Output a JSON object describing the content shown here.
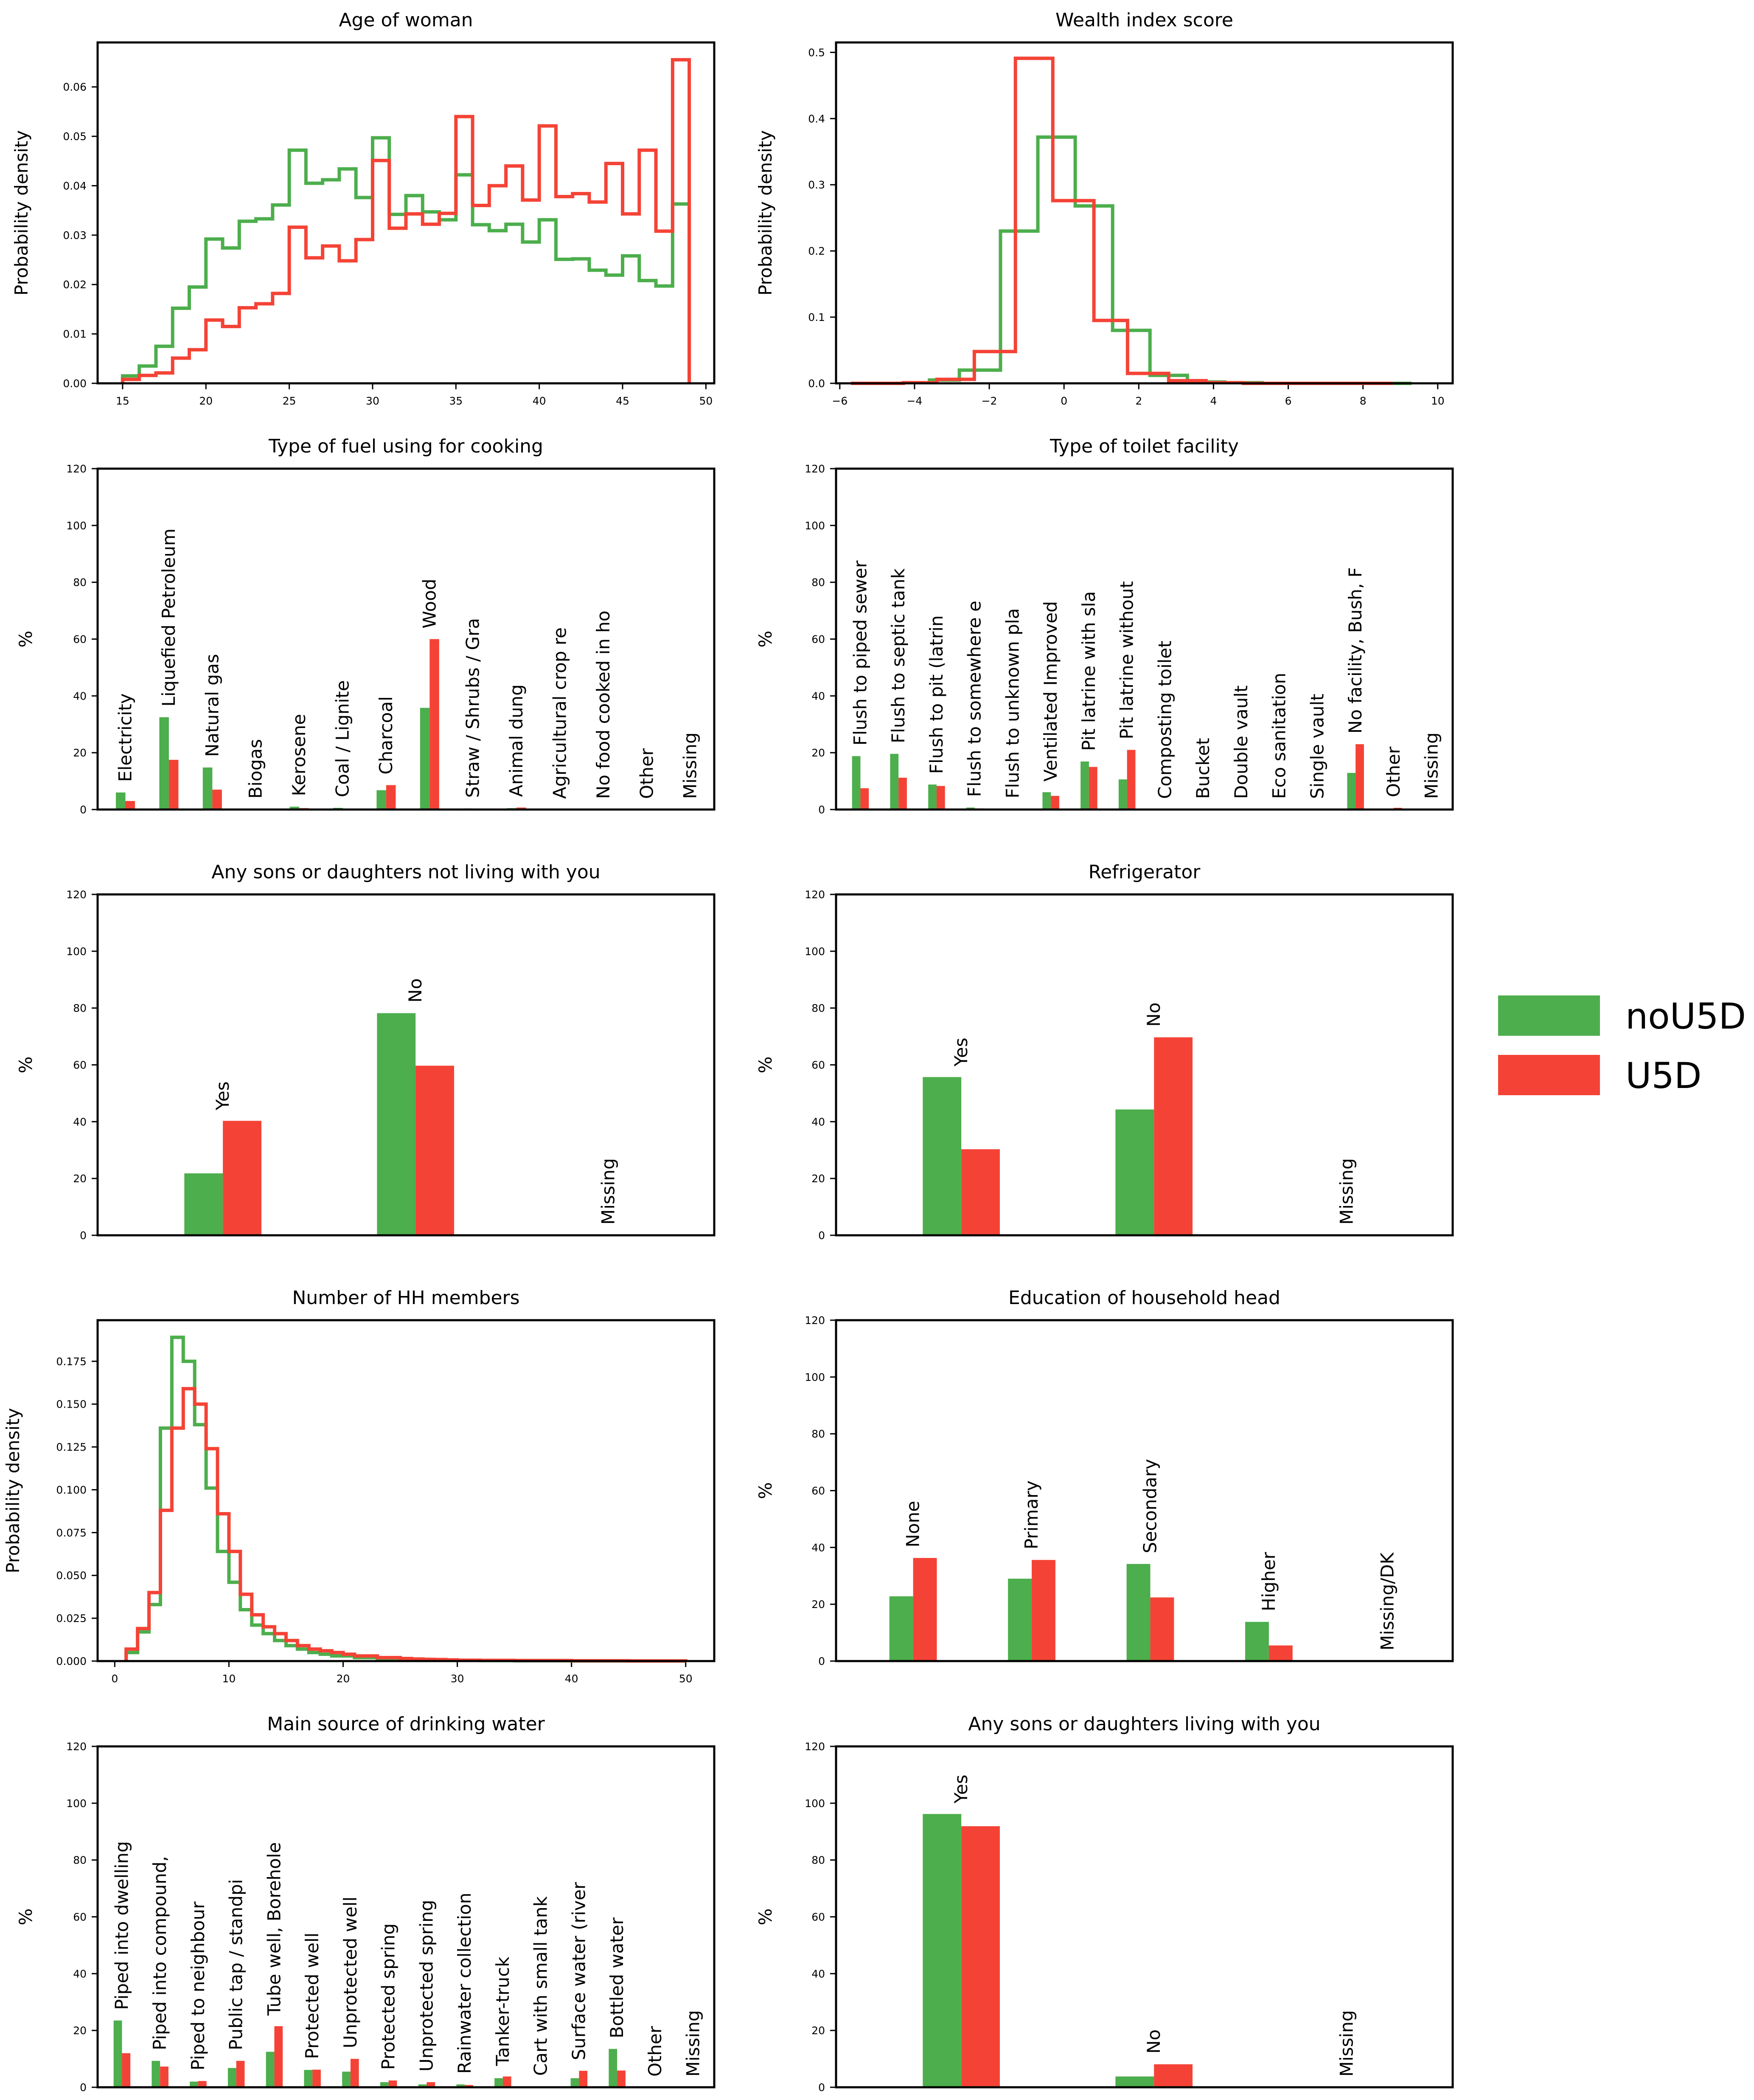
{
  "colors": {
    "noU5D": "#4cae4c",
    "U5D": "#f44336"
  },
  "legend": {
    "entries": [
      {
        "key": "noU5D",
        "label": "noU5D"
      },
      {
        "key": "U5D",
        "label": "U5D"
      }
    ]
  },
  "chart_data": [
    {
      "id": "age",
      "type": "step-histogram",
      "title": "Age of woman",
      "ylabel": "Probability density",
      "xlim": [
        13.5,
        50.5
      ],
      "ylim": [
        0,
        0.069
      ],
      "xticks": [
        15,
        20,
        25,
        30,
        35,
        40,
        45,
        50
      ],
      "yticks": [
        0.0,
        0.01,
        0.02,
        0.03,
        0.04,
        0.05,
        0.06
      ],
      "ytick_labels": [
        "0.00",
        "0.01",
        "0.02",
        "0.03",
        "0.04",
        "0.05",
        "0.06"
      ],
      "edges": [
        15,
        16,
        17,
        18,
        19,
        20,
        21,
        22,
        23,
        24,
        25,
        26,
        27,
        28,
        29,
        30,
        31,
        32,
        33,
        34,
        35,
        36,
        37,
        38,
        39,
        40,
        41,
        42,
        43,
        44,
        45,
        46,
        47,
        48,
        49
      ],
      "series": [
        {
          "name": "noU5D",
          "values": [
            0.0015,
            0.0035,
            0.0075,
            0.0152,
            0.0195,
            0.0292,
            0.0274,
            0.0328,
            0.0333,
            0.0361,
            0.0472,
            0.0405,
            0.0412,
            0.0434,
            0.0376,
            0.0497,
            0.0342,
            0.038,
            0.0347,
            0.0331,
            0.0422,
            0.0321,
            0.0309,
            0.0322,
            0.0286,
            0.0331,
            0.0251,
            0.0252,
            0.0229,
            0.0219,
            0.0258,
            0.0208,
            0.0197,
            0.0363
          ]
        },
        {
          "name": "U5D",
          "values": [
            0.0008,
            0.0016,
            0.0021,
            0.0051,
            0.0068,
            0.0128,
            0.0115,
            0.0153,
            0.0161,
            0.0182,
            0.0316,
            0.0254,
            0.0278,
            0.0248,
            0.0291,
            0.0451,
            0.0314,
            0.0343,
            0.0322,
            0.0344,
            0.054,
            0.036,
            0.04,
            0.044,
            0.0371,
            0.0521,
            0.0378,
            0.0384,
            0.0367,
            0.0445,
            0.0343,
            0.0472,
            0.0308,
            0.0655
          ]
        }
      ]
    },
    {
      "id": "wealth",
      "type": "step-histogram",
      "title": "Wealth index score",
      "ylabel": "Probability density",
      "xlim": [
        -6.1,
        10.4
      ],
      "ylim": [
        0,
        0.515
      ],
      "xticks": [
        -6,
        -4,
        -2,
        0,
        2,
        4,
        6,
        8,
        10
      ],
      "xtick_labels": [
        "−6",
        "−4",
        "−2",
        "0",
        "2",
        "4",
        "6",
        "8",
        "10"
      ],
      "yticks": [
        0.0,
        0.1,
        0.2,
        0.3,
        0.4,
        0.5
      ],
      "ytick_labels": [
        "0.0",
        "0.1",
        "0.2",
        "0.3",
        "0.4",
        "0.5"
      ],
      "edges": [
        -5.7,
        -4.7,
        -3.7,
        -2.7,
        -1.7,
        -0.7,
        0.3,
        1.3,
        2.3,
        3.3,
        4.3,
        5.3,
        6.3,
        7.3,
        8.3,
        9.3
      ],
      "edges_by_series": {
        "noU5D": [
          -5.7,
          -5.0,
          -4.3,
          -3.6,
          -2.8,
          -1.7,
          -0.7,
          0.3,
          1.3,
          2.3,
          3.3,
          4.3,
          5.3,
          6.3,
          7.3,
          8.3,
          9.3
        ],
        "U5D": [
          -5.7,
          -4.3,
          -3.4,
          -2.4,
          -1.3,
          -0.3,
          0.8,
          1.7,
          2.8,
          3.8,
          4.8,
          5.8,
          6.8,
          7.8,
          8.8
        ]
      },
      "series": [
        {
          "name": "noU5D",
          "values": [
            0.0,
            0.0,
            0.001,
            0.005,
            0.02,
            0.23,
            0.372,
            0.268,
            0.08,
            0.012,
            0.002,
            0.001,
            0.0,
            0.0,
            0.0,
            0.0
          ]
        },
        {
          "name": "U5D",
          "values": [
            0.0,
            0.001,
            0.006,
            0.048,
            0.491,
            0.276,
            0.095,
            0.015,
            0.004,
            0.001,
            0.0,
            0.0,
            0.0,
            0.0
          ]
        }
      ]
    },
    {
      "id": "fuel",
      "type": "bar",
      "title": "Type of fuel using for cooking",
      "ylabel": "%",
      "ylim": [
        0,
        120
      ],
      "yticks": [
        0,
        20,
        40,
        60,
        80,
        100,
        120
      ],
      "bar_width": 0.22,
      "categories": [
        "Electricity",
        "Liquefied Petroleum",
        "Natural gas",
        "Biogas",
        "Kerosene",
        "Coal / Lignite",
        "Charcoal",
        "Wood",
        "Straw / Shrubs / Gra",
        "Animal dung",
        "Agricultural crop re",
        "No food cooked in ho",
        "Other",
        "Missing"
      ],
      "series": [
        {
          "name": "noU5D",
          "values": [
            6.0,
            32.5,
            14.8,
            0.1,
            1.0,
            0.6,
            6.8,
            35.8,
            0.4,
            0.5,
            0.0,
            0.0,
            0.0,
            0.0
          ]
        },
        {
          "name": "U5D",
          "values": [
            3.0,
            17.5,
            7.0,
            0.0,
            0.5,
            0.3,
            8.6,
            60.0,
            0.3,
            0.7,
            0.0,
            0.0,
            0.0,
            0.0
          ]
        }
      ]
    },
    {
      "id": "toilet",
      "type": "bar",
      "title": "Type of toilet facility",
      "ylabel": "%",
      "ylim": [
        0,
        120
      ],
      "yticks": [
        0,
        20,
        40,
        60,
        80,
        100,
        120
      ],
      "bar_width": 0.22,
      "categories": [
        "Flush to piped sewer",
        "Flush to septic tank",
        "Flush to pit (latrin",
        "Flush to somewhere e",
        "Flush to unknown pla",
        "Ventilated Improved",
        "Pit latrine with sla",
        "Pit latrine without",
        "Composting toilet",
        "Bucket",
        "Double vault",
        "Eco sanitation",
        "Single vault",
        "No facility, Bush, F",
        "Other",
        "Missing"
      ],
      "series": [
        {
          "name": "noU5D",
          "values": [
            18.8,
            19.6,
            8.8,
            0.7,
            0.2,
            6.1,
            16.9,
            10.6,
            0.0,
            0.0,
            0.0,
            0.0,
            0.0,
            12.9,
            0.3,
            0.0
          ]
        },
        {
          "name": "U5D",
          "values": [
            7.5,
            11.2,
            8.3,
            0.4,
            0.2,
            4.8,
            15.0,
            21.0,
            0.0,
            0.0,
            0.0,
            0.0,
            0.0,
            23.0,
            0.6,
            0.0
          ]
        }
      ]
    },
    {
      "id": "sons_not_living",
      "type": "bar",
      "title": "Any sons or daughters not living with you",
      "ylabel": "%",
      "ylim": [
        0,
        120
      ],
      "yticks": [
        0,
        20,
        40,
        60,
        80,
        100,
        120
      ],
      "bar_width": 0.2,
      "categories": [
        "Yes",
        "No",
        "Missing"
      ],
      "series": [
        {
          "name": "noU5D",
          "values": [
            21.8,
            78.2,
            0.0
          ]
        },
        {
          "name": "U5D",
          "values": [
            40.3,
            59.7,
            0.0
          ]
        }
      ]
    },
    {
      "id": "fridge",
      "type": "bar",
      "title": "Refrigerator",
      "ylabel": "%",
      "ylim": [
        0,
        120
      ],
      "yticks": [
        0,
        20,
        40,
        60,
        80,
        100,
        120
      ],
      "bar_width": 0.2,
      "categories": [
        "Yes",
        "No",
        "Missing"
      ],
      "series": [
        {
          "name": "noU5D",
          "values": [
            55.7,
            44.3,
            0.0
          ]
        },
        {
          "name": "U5D",
          "values": [
            30.3,
            69.7,
            0.0
          ]
        }
      ]
    },
    {
      "id": "hh_members",
      "type": "step-histogram",
      "title": "Number of HH members",
      "ylabel": "Probability density",
      "xlim": [
        -1.5,
        52.5
      ],
      "ylim": [
        0,
        0.199
      ],
      "xticks": [
        0,
        10,
        20,
        30,
        40,
        50
      ],
      "yticks": [
        0.0,
        0.025,
        0.05,
        0.075,
        0.1,
        0.125,
        0.15,
        0.175
      ],
      "ytick_labels": [
        "0.000",
        "0.025",
        "0.050",
        "0.075",
        "0.100",
        "0.125",
        "0.150",
        "0.175"
      ],
      "edges": [
        1,
        2,
        3,
        4,
        5,
        6,
        7,
        8,
        9,
        10,
        11,
        12,
        13,
        14,
        15,
        16,
        17,
        18,
        19,
        20,
        21,
        22,
        23,
        24,
        25,
        26,
        27,
        28,
        29,
        30,
        32,
        35,
        40,
        45,
        50
      ],
      "series": [
        {
          "name": "noU5D",
          "values": [
            0.005,
            0.017,
            0.033,
            0.136,
            0.189,
            0.175,
            0.138,
            0.101,
            0.064,
            0.046,
            0.03,
            0.021,
            0.016,
            0.012,
            0.009,
            0.007,
            0.005,
            0.004,
            0.003,
            0.003,
            0.002,
            0.002,
            0.0015,
            0.0012,
            0.001,
            0.001,
            0.0008,
            0.0006,
            0.0005,
            0.0004,
            0.0003,
            0.0002,
            0.0001,
            0.0001
          ]
        },
        {
          "name": "U5D",
          "values": [
            0.007,
            0.019,
            0.04,
            0.088,
            0.136,
            0.159,
            0.15,
            0.124,
            0.086,
            0.064,
            0.039,
            0.027,
            0.02,
            0.016,
            0.012,
            0.009,
            0.007,
            0.006,
            0.005,
            0.004,
            0.003,
            0.003,
            0.002,
            0.002,
            0.0015,
            0.0012,
            0.001,
            0.0009,
            0.0007,
            0.0005,
            0.0004,
            0.0003,
            0.0002,
            0.0001
          ]
        }
      ]
    },
    {
      "id": "education",
      "type": "bar",
      "title": "Education of household head",
      "ylabel": "%",
      "ylim": [
        0,
        120
      ],
      "yticks": [
        0,
        20,
        40,
        60,
        80,
        100,
        120
      ],
      "bar_width": 0.2,
      "categories": [
        "None",
        "Primary",
        "Secondary",
        "Higher",
        "Missing/DK"
      ],
      "series": [
        {
          "name": "noU5D",
          "values": [
            22.8,
            29.0,
            34.2,
            13.8,
            0.0
          ]
        },
        {
          "name": "U5D",
          "values": [
            36.3,
            35.6,
            22.4,
            5.5,
            0.0
          ]
        }
      ]
    },
    {
      "id": "water",
      "type": "bar",
      "title": "Main source of drinking water",
      "ylabel": "%",
      "ylim": [
        0,
        120
      ],
      "yticks": [
        0,
        20,
        40,
        60,
        80,
        100,
        120
      ],
      "bar_width": 0.22,
      "categories": [
        "Piped into dwelling",
        "Piped into compound,",
        "Piped to neighbour",
        "Public tap / standpi",
        "Tube well, Borehole",
        "Protected well",
        "Unprotected well",
        "Protected spring",
        "Unprotected spring",
        "Rainwater collection",
        "Tanker-truck",
        "Cart with small tank",
        "Surface water (river",
        "Bottled water",
        "Other",
        "Missing"
      ],
      "series": [
        {
          "name": "noU5D",
          "values": [
            23.5,
            9.3,
            2.0,
            6.8,
            12.5,
            6.1,
            5.5,
            1.8,
            1.0,
            1.0,
            3.2,
            0.3,
            3.2,
            13.5,
            0.0,
            0.0
          ]
        },
        {
          "name": "U5D",
          "values": [
            12.0,
            7.3,
            2.2,
            9.3,
            21.5,
            6.2,
            10.0,
            2.4,
            1.8,
            0.8,
            3.8,
            0.3,
            5.8,
            5.9,
            0.0,
            0.0
          ]
        }
      ]
    },
    {
      "id": "sons_living",
      "type": "bar",
      "title": "Any sons or daughters living with you",
      "ylabel": "%",
      "ylim": [
        0,
        120
      ],
      "yticks": [
        0,
        20,
        40,
        60,
        80,
        100,
        120
      ],
      "bar_width": 0.2,
      "categories": [
        "Yes",
        "No",
        "Missing"
      ],
      "series": [
        {
          "name": "noU5D",
          "values": [
            96.2,
            3.8,
            0.0
          ]
        },
        {
          "name": "U5D",
          "values": [
            91.9,
            8.1,
            0.0
          ]
        }
      ]
    }
  ]
}
